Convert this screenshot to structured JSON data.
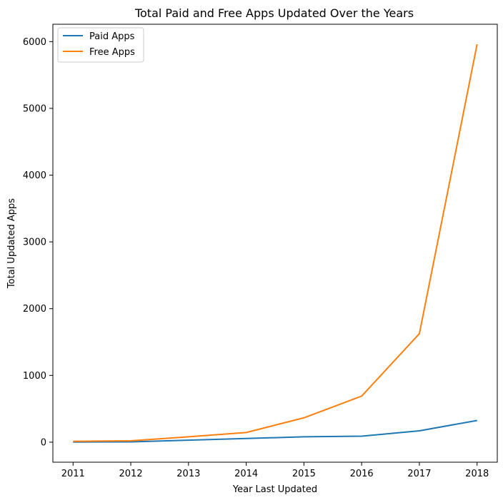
{
  "chart_data": {
    "type": "line",
    "title": "Total Paid and Free Apps Updated Over the Years",
    "xlabel": "Year Last Updated",
    "ylabel": "Total Updated Apps",
    "x": [
      2011,
      2012,
      2013,
      2014,
      2015,
      2016,
      2017,
      2018
    ],
    "xticks": [
      "2011",
      "2012",
      "2013",
      "2014",
      "2015",
      "2016",
      "2017",
      "2018"
    ],
    "yticks": [
      "0",
      "1000",
      "2000",
      "3000",
      "4000",
      "5000",
      "6000"
    ],
    "ylim": [
      -300,
      6260
    ],
    "xlim": [
      2010.65,
      2018.35
    ],
    "grid": false,
    "legend_position": "top-left",
    "series": [
      {
        "name": "Paid Apps",
        "color": "#1f77b4",
        "values": [
          2,
          5,
          30,
          55,
          80,
          90,
          170,
          325
        ]
      },
      {
        "name": "Free Apps",
        "color": "#ff7f0e",
        "values": [
          13,
          20,
          80,
          145,
          365,
          690,
          1625,
          5960
        ]
      }
    ]
  }
}
